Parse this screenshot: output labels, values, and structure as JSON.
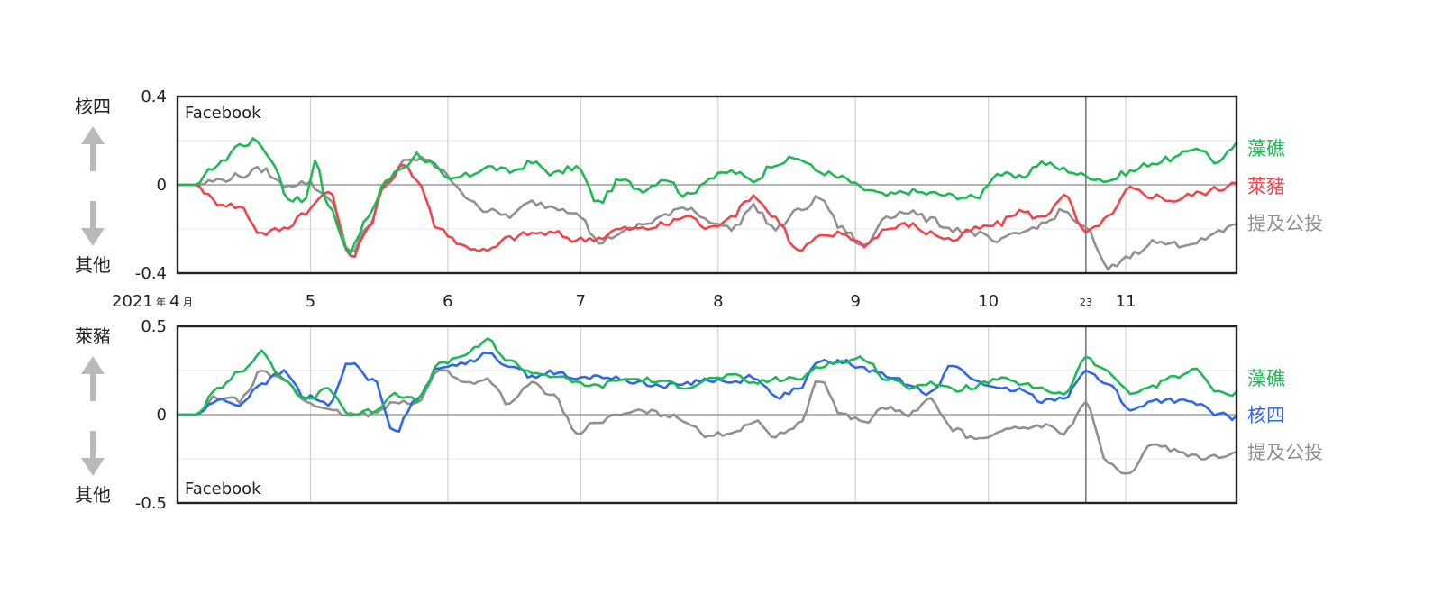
{
  "chart_data": [
    {
      "type": "line",
      "source": "Facebook",
      "ylim": [
        -0.4,
        0.4
      ],
      "yticks": [
        "0.4",
        "0",
        "-0.4"
      ],
      "y_top_label": "核四",
      "y_bottom_label": "其他",
      "x_range": [
        "2021-04-01",
        "2021-11-26"
      ],
      "reference_date": "2021-10-23",
      "grid": true,
      "series": [
        {
          "name": "藻礁",
          "color": "#1db954",
          "x": [
            "2021-04-01",
            "2021-04-05",
            "2021-04-10",
            "2021-04-15",
            "2021-04-19",
            "2021-04-22",
            "2021-04-26",
            "2021-04-30",
            "2021-05-02",
            "2021-05-05",
            "2021-05-10",
            "2021-05-14",
            "2021-05-18",
            "2021-05-22",
            "2021-05-25",
            "2021-05-28",
            "2021-06-01",
            "2021-06-05",
            "2021-06-10",
            "2021-06-15",
            "2021-06-20",
            "2021-06-25",
            "2021-06-30",
            "2021-07-05",
            "2021-07-10",
            "2021-07-15",
            "2021-07-20",
            "2021-07-25",
            "2021-07-30",
            "2021-08-04",
            "2021-08-09",
            "2021-08-14",
            "2021-08-19",
            "2021-08-24",
            "2021-08-29",
            "2021-09-03",
            "2021-09-08",
            "2021-09-13",
            "2021-09-18",
            "2021-09-23",
            "2021-09-28",
            "2021-10-03",
            "2021-10-08",
            "2021-10-13",
            "2021-10-18",
            "2021-10-23",
            "2021-10-28",
            "2021-11-02",
            "2021-11-07",
            "2021-11-12",
            "2021-11-17",
            "2021-11-22",
            "2021-11-26"
          ],
          "y": [
            0.0,
            0.0,
            0.09,
            0.18,
            0.2,
            0.12,
            -0.06,
            -0.07,
            0.12,
            -0.1,
            -0.3,
            -0.15,
            0.02,
            0.08,
            0.14,
            0.1,
            0.02,
            0.04,
            0.08,
            0.06,
            0.1,
            0.05,
            0.08,
            -0.08,
            0.02,
            -0.02,
            0.03,
            -0.05,
            0.03,
            0.06,
            0.02,
            0.1,
            0.12,
            0.06,
            0.03,
            -0.02,
            -0.05,
            -0.03,
            -0.04,
            -0.05,
            -0.06,
            0.05,
            0.03,
            0.1,
            0.07,
            0.04,
            0.02,
            0.06,
            0.1,
            0.12,
            0.17,
            0.1,
            0.18
          ]
        },
        {
          "name": "萊豬",
          "color": "#f0434a",
          "x": [
            "2021-04-01",
            "2021-04-05",
            "2021-04-10",
            "2021-04-15",
            "2021-04-20",
            "2021-04-25",
            "2021-04-30",
            "2021-05-05",
            "2021-05-10",
            "2021-05-14",
            "2021-05-18",
            "2021-05-22",
            "2021-05-25",
            "2021-05-30",
            "2021-06-05",
            "2021-06-10",
            "2021-06-15",
            "2021-06-20",
            "2021-06-25",
            "2021-06-30",
            "2021-07-05",
            "2021-07-10",
            "2021-07-15",
            "2021-07-20",
            "2021-07-25",
            "2021-07-30",
            "2021-08-04",
            "2021-08-09",
            "2021-08-14",
            "2021-08-19",
            "2021-08-24",
            "2021-08-29",
            "2021-09-03",
            "2021-09-08",
            "2021-09-13",
            "2021-09-18",
            "2021-09-23",
            "2021-09-28",
            "2021-10-03",
            "2021-10-08",
            "2021-10-13",
            "2021-10-18",
            "2021-10-23",
            "2021-10-28",
            "2021-11-02",
            "2021-11-07",
            "2021-11-12",
            "2021-11-17",
            "2021-11-22",
            "2021-11-26"
          ],
          "y": [
            0.0,
            0.0,
            -0.08,
            -0.1,
            -0.22,
            -0.2,
            -0.12,
            -0.03,
            -0.33,
            -0.2,
            0.0,
            0.1,
            0.02,
            -0.2,
            -0.28,
            -0.3,
            -0.24,
            -0.22,
            -0.22,
            -0.25,
            -0.24,
            -0.2,
            -0.2,
            -0.18,
            -0.14,
            -0.2,
            -0.14,
            -0.05,
            -0.15,
            -0.3,
            -0.24,
            -0.22,
            -0.27,
            -0.2,
            -0.18,
            -0.22,
            -0.25,
            -0.2,
            -0.18,
            -0.12,
            -0.15,
            -0.05,
            -0.22,
            -0.15,
            -0.02,
            -0.05,
            -0.07,
            -0.04,
            -0.02,
            0.02
          ]
        },
        {
          "name": "提及公投",
          "color": "#909090",
          "x": [
            "2021-04-01",
            "2021-04-05",
            "2021-04-10",
            "2021-04-15",
            "2021-04-20",
            "2021-04-25",
            "2021-04-30",
            "2021-05-05",
            "2021-05-10",
            "2021-05-14",
            "2021-05-18",
            "2021-05-22",
            "2021-05-26",
            "2021-05-30",
            "2021-06-05",
            "2021-06-10",
            "2021-06-15",
            "2021-06-20",
            "2021-06-25",
            "2021-06-30",
            "2021-07-05",
            "2021-07-10",
            "2021-07-15",
            "2021-07-20",
            "2021-07-25",
            "2021-07-30",
            "2021-08-04",
            "2021-08-09",
            "2021-08-14",
            "2021-08-19",
            "2021-08-24",
            "2021-08-29",
            "2021-09-03",
            "2021-09-08",
            "2021-09-13",
            "2021-09-18",
            "2021-09-23",
            "2021-09-28",
            "2021-10-03",
            "2021-10-08",
            "2021-10-13",
            "2021-10-18",
            "2021-10-23",
            "2021-10-28",
            "2021-11-02",
            "2021-11-07",
            "2021-11-12",
            "2021-11-17",
            "2021-11-22",
            "2021-11-26"
          ],
          "y": [
            0.0,
            0.0,
            0.02,
            0.04,
            0.07,
            0.0,
            0.01,
            -0.05,
            -0.3,
            -0.2,
            0.0,
            0.1,
            0.12,
            0.08,
            -0.05,
            -0.12,
            -0.14,
            -0.08,
            -0.1,
            -0.12,
            -0.26,
            -0.22,
            -0.18,
            -0.14,
            -0.1,
            -0.16,
            -0.2,
            -0.1,
            -0.2,
            -0.12,
            -0.06,
            -0.2,
            -0.28,
            -0.14,
            -0.12,
            -0.16,
            -0.2,
            -0.22,
            -0.26,
            -0.22,
            -0.18,
            -0.12,
            -0.2,
            -0.38,
            -0.32,
            -0.26,
            -0.27,
            -0.26,
            -0.22,
            -0.17
          ]
        }
      ],
      "legend": [
        "藻礁",
        "萊豬",
        "提及公投"
      ],
      "legend_position": "right"
    },
    {
      "type": "line",
      "source": "Facebook",
      "ylim": [
        -0.5,
        0.5
      ],
      "yticks": [
        "0.5",
        "0",
        "-0.5"
      ],
      "y_top_label": "萊豬",
      "y_bottom_label": "其他",
      "x_range": [
        "2021-04-01",
        "2021-11-26"
      ],
      "reference_date": "2021-10-23",
      "grid": true,
      "series": [
        {
          "name": "藻礁",
          "color": "#1db954",
          "x": [
            "2021-04-01",
            "2021-04-05",
            "2021-04-10",
            "2021-04-15",
            "2021-04-20",
            "2021-04-25",
            "2021-04-30",
            "2021-05-05",
            "2021-05-10",
            "2021-05-15",
            "2021-05-20",
            "2021-05-25",
            "2021-05-30",
            "2021-06-05",
            "2021-06-10",
            "2021-06-15",
            "2021-06-20",
            "2021-06-25",
            "2021-06-30",
            "2021-07-05",
            "2021-07-10",
            "2021-07-15",
            "2021-07-20",
            "2021-07-25",
            "2021-07-30",
            "2021-08-04",
            "2021-08-09",
            "2021-08-14",
            "2021-08-19",
            "2021-08-24",
            "2021-08-29",
            "2021-09-03",
            "2021-09-08",
            "2021-09-13",
            "2021-09-18",
            "2021-09-23",
            "2021-09-28",
            "2021-10-03",
            "2021-10-08",
            "2021-10-13",
            "2021-10-18",
            "2021-10-23",
            "2021-10-28",
            "2021-11-02",
            "2021-11-07",
            "2021-11-12",
            "2021-11-17",
            "2021-11-22",
            "2021-11-26"
          ],
          "y": [
            0.0,
            0.0,
            0.14,
            0.25,
            0.35,
            0.2,
            0.08,
            0.15,
            0.0,
            0.02,
            0.12,
            0.08,
            0.28,
            0.34,
            0.42,
            0.3,
            0.24,
            0.22,
            0.18,
            0.16,
            0.2,
            0.2,
            0.18,
            0.16,
            0.2,
            0.22,
            0.18,
            0.2,
            0.2,
            0.28,
            0.3,
            0.32,
            0.2,
            0.16,
            0.18,
            0.14,
            0.16,
            0.2,
            0.18,
            0.14,
            0.12,
            0.32,
            0.24,
            0.12,
            0.16,
            0.22,
            0.25,
            0.12,
            0.12
          ]
        },
        {
          "name": "核四",
          "color": "#2f67e8",
          "x": [
            "2021-04-01",
            "2021-04-05",
            "2021-04-10",
            "2021-04-15",
            "2021-04-20",
            "2021-04-25",
            "2021-04-30",
            "2021-05-05",
            "2021-05-10",
            "2021-05-15",
            "2021-05-20",
            "2021-05-25",
            "2021-05-30",
            "2021-06-05",
            "2021-06-10",
            "2021-06-15",
            "2021-06-20",
            "2021-06-25",
            "2021-06-30",
            "2021-07-05",
            "2021-07-10",
            "2021-07-15",
            "2021-07-20",
            "2021-07-25",
            "2021-07-30",
            "2021-08-04",
            "2021-08-09",
            "2021-08-14",
            "2021-08-19",
            "2021-08-24",
            "2021-08-29",
            "2021-09-03",
            "2021-09-08",
            "2021-09-13",
            "2021-09-18",
            "2021-09-23",
            "2021-09-28",
            "2021-10-03",
            "2021-10-08",
            "2021-10-13",
            "2021-10-18",
            "2021-10-23",
            "2021-10-28",
            "2021-11-02",
            "2021-11-07",
            "2021-11-12",
            "2021-11-17",
            "2021-11-22",
            "2021-11-26"
          ],
          "y": [
            0.0,
            0.0,
            0.08,
            0.06,
            0.18,
            0.24,
            0.1,
            0.06,
            0.3,
            0.2,
            -0.1,
            0.1,
            0.26,
            0.3,
            0.34,
            0.28,
            0.22,
            0.24,
            0.2,
            0.22,
            0.2,
            0.18,
            0.16,
            0.18,
            0.2,
            0.18,
            0.22,
            0.1,
            0.14,
            0.3,
            0.3,
            0.26,
            0.22,
            0.18,
            0.12,
            0.28,
            0.2,
            0.14,
            0.14,
            0.08,
            0.1,
            0.24,
            0.18,
            0.02,
            0.08,
            0.08,
            0.06,
            0.0,
            -0.02
          ]
        },
        {
          "name": "提及公投",
          "color": "#909090",
          "x": [
            "2021-04-01",
            "2021-04-05",
            "2021-04-10",
            "2021-04-15",
            "2021-04-20",
            "2021-04-25",
            "2021-04-30",
            "2021-05-05",
            "2021-05-10",
            "2021-05-15",
            "2021-05-20",
            "2021-05-25",
            "2021-05-30",
            "2021-06-05",
            "2021-06-10",
            "2021-06-15",
            "2021-06-20",
            "2021-06-25",
            "2021-06-30",
            "2021-07-05",
            "2021-07-10",
            "2021-07-15",
            "2021-07-20",
            "2021-07-25",
            "2021-07-30",
            "2021-08-04",
            "2021-08-09",
            "2021-08-14",
            "2021-08-19",
            "2021-08-24",
            "2021-08-29",
            "2021-09-03",
            "2021-09-08",
            "2021-09-13",
            "2021-09-18",
            "2021-09-23",
            "2021-09-28",
            "2021-10-03",
            "2021-10-08",
            "2021-10-13",
            "2021-10-18",
            "2021-10-23",
            "2021-10-28",
            "2021-11-02",
            "2021-11-07",
            "2021-11-12",
            "2021-11-17",
            "2021-11-22",
            "2021-11-26"
          ],
          "y": [
            0.0,
            0.0,
            0.1,
            0.08,
            0.24,
            0.2,
            0.08,
            0.02,
            0.0,
            0.0,
            0.08,
            0.06,
            0.26,
            0.18,
            0.2,
            0.06,
            0.18,
            0.1,
            -0.1,
            -0.04,
            0.0,
            0.02,
            0.0,
            -0.04,
            -0.12,
            -0.1,
            -0.04,
            -0.12,
            -0.06,
            0.2,
            0.0,
            -0.04,
            0.04,
            0.0,
            0.08,
            -0.08,
            -0.14,
            -0.1,
            -0.08,
            -0.06,
            -0.1,
            0.06,
            -0.28,
            -0.34,
            -0.16,
            -0.2,
            -0.24,
            -0.24,
            -0.2
          ]
        }
      ],
      "legend": [
        "藻礁",
        "核四",
        "提及公投"
      ],
      "legend_position": "right"
    }
  ],
  "x_axis": {
    "year_label": "2021",
    "year_unit": "年",
    "first_month": "4",
    "month_unit": "月",
    "months": [
      "5",
      "6",
      "7",
      "8",
      "9",
      "10",
      "11"
    ],
    "reference_label": "23"
  }
}
